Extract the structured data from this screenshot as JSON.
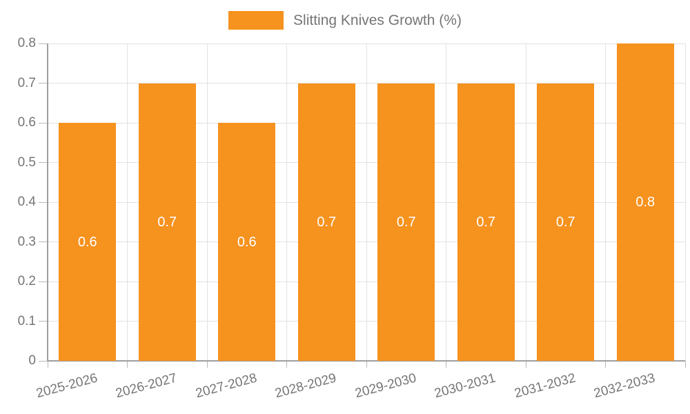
{
  "chart_data": {
    "type": "bar",
    "title": "Slitting Knives Growth (%)",
    "legend": {
      "position": "top",
      "label": "Slitting Knives Growth (%)"
    },
    "categories": [
      "2025-2026",
      "2026-2027",
      "2027-2028",
      "2028-2029",
      "2029-2030",
      "2030-2031",
      "2031-2032",
      "2032-2033"
    ],
    "series": [
      {
        "name": "Slitting Knives Growth (%)",
        "values": [
          0.6,
          0.7,
          0.6,
          0.7,
          0.7,
          0.7,
          0.7,
          0.8
        ],
        "color": "#F6921E"
      }
    ],
    "value_labels": [
      "0.6",
      "0.7",
      "0.6",
      "0.7",
      "0.7",
      "0.7",
      "0.7",
      "0.8"
    ],
    "xlabel": "",
    "ylabel": "",
    "ylim": [
      0,
      0.8
    ],
    "ytick_labels": [
      "0",
      "0.1",
      "0.2",
      "0.3",
      "0.4",
      "0.5",
      "0.6",
      "0.7",
      "0.8"
    ],
    "grid": true,
    "colors": {
      "bar": "#F6921E",
      "axis_text": "#757575",
      "gridline": "#E2E2E2",
      "axis_line": "#9E9E9E",
      "tick": "#B8B8B8",
      "value_label": "#FFFFFF",
      "background": "#FFFFFF"
    }
  }
}
